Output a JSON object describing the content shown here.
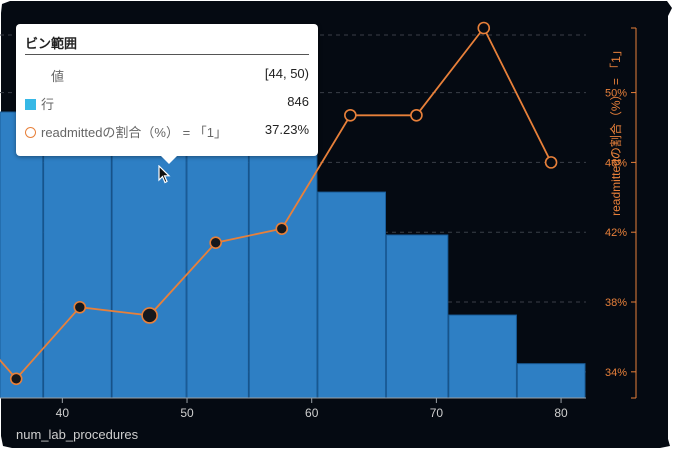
{
  "chart_data": {
    "type": "bar+line",
    "x_label": "num_lab_procedures",
    "x_ticks": [
      "40",
      "50",
      "60",
      "70",
      "80"
    ],
    "xlim": [
      35,
      82
    ],
    "y_right_label": "readmittedの割合（%） = 「1」",
    "y_right_ticks": [
      "34%",
      "38%",
      "42%",
      "46%",
      "50%"
    ],
    "y_right_lim": [
      32.5,
      53.7
    ],
    "bars": {
      "name": "行",
      "bins": [
        [
          33,
          38.5
        ],
        [
          38.5,
          44
        ],
        [
          44,
          50
        ],
        [
          50,
          55
        ],
        [
          55,
          60.5
        ],
        [
          60.5,
          66
        ],
        [
          66,
          71
        ],
        [
          71,
          76.5
        ],
        [
          76.5,
          82
        ]
      ],
      "relative_heights": [
        1.0,
        0.99,
        1.0,
        0.95,
        0.89,
        0.72,
        0.57,
        0.29,
        0.12
      ]
    },
    "series": [
      {
        "name": "readmittedの割合（%） = 「1」",
        "x": [
          33,
          36.3,
          41.4,
          47,
          52.3,
          57.6,
          63.1,
          68.4,
          73.8,
          79.2
        ],
        "y": [
          36.3,
          33.6,
          37.7,
          37.23,
          41.4,
          42.2,
          48.7,
          48.7,
          53.7,
          46.0
        ]
      }
    ],
    "highlighted_index": 3
  },
  "tooltip": {
    "title": "ビン範囲",
    "rows": [
      {
        "label": "値",
        "value": "[44, 50)"
      },
      {
        "label": "行",
        "value": "846"
      },
      {
        "label": "readmittedの割合（%） = 「1」",
        "value": "37.23%"
      }
    ]
  },
  "colors": {
    "background": "#050a12",
    "bar": "#2e7fc4",
    "bar_edge": "#1a5d99",
    "line": "#e8803a",
    "axis_text": "#cfcfcf",
    "right_axis": "#e8803a"
  }
}
